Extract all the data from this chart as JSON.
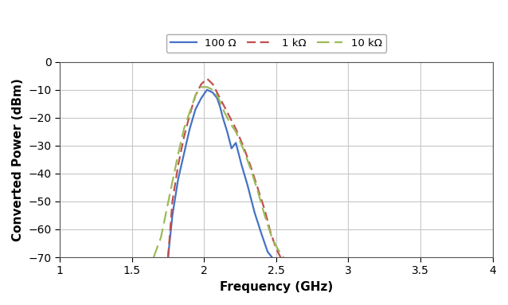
{
  "title": "",
  "xlabel": "Frequency (GHz)",
  "ylabel": "Converted Power (dBm)",
  "xlim": [
    1,
    4
  ],
  "ylim": [
    -70,
    0
  ],
  "xticks": [
    1,
    1.5,
    2,
    2.5,
    3,
    3.5,
    4
  ],
  "yticks": [
    0,
    -10,
    -20,
    -30,
    -40,
    -50,
    -60,
    -70
  ],
  "legend_labels": [
    "100 Ω",
    "1 kΩ",
    "10 kΩ"
  ],
  "line_100": {
    "color": "#4472C4",
    "linewidth": 1.6,
    "x": [
      1.75,
      1.78,
      1.82,
      1.86,
      1.9,
      1.94,
      1.98,
      2.02,
      2.06,
      2.09,
      2.11,
      2.13,
      2.16,
      2.19,
      2.22,
      2.26,
      2.3,
      2.35,
      2.4,
      2.44,
      2.47
    ],
    "y": [
      -70,
      -55,
      -42,
      -33,
      -24,
      -17,
      -13,
      -10,
      -11,
      -13,
      -16,
      -20,
      -25,
      -31,
      -29,
      -37,
      -44,
      -54,
      -62,
      -68,
      -70
    ]
  },
  "line_1k": {
    "color": "#C0504D",
    "linewidth": 1.6,
    "x": [
      1.75,
      1.78,
      1.82,
      1.86,
      1.9,
      1.94,
      1.98,
      2.02,
      2.06,
      2.1,
      2.14,
      2.18,
      2.22,
      2.27,
      2.32,
      2.37,
      2.42,
      2.46,
      2.5,
      2.53
    ],
    "y": [
      -70,
      -50,
      -37,
      -27,
      -19,
      -12,
      -8,
      -6,
      -8,
      -12,
      -16,
      -20,
      -24,
      -30,
      -37,
      -45,
      -53,
      -61,
      -67,
      -70
    ]
  },
  "line_10k": {
    "color": "#9BBB59",
    "linewidth": 1.6,
    "x": [
      1.65,
      1.7,
      1.74,
      1.78,
      1.82,
      1.86,
      1.9,
      1.94,
      1.98,
      2.02,
      2.06,
      2.1,
      2.14,
      2.18,
      2.22,
      2.27,
      2.32,
      2.37,
      2.42,
      2.47,
      2.51,
      2.55
    ],
    "y": [
      -70,
      -63,
      -53,
      -43,
      -33,
      -24,
      -18,
      -12,
      -9,
      -9,
      -10,
      -13,
      -18,
      -22,
      -25,
      -31,
      -38,
      -46,
      -55,
      -63,
      -67,
      -70
    ]
  },
  "background_color": "#ffffff",
  "grid_color": "#c8c8c8",
  "legend_fontsize": 9.5,
  "axis_label_fontsize": 11,
  "tick_fontsize": 10
}
